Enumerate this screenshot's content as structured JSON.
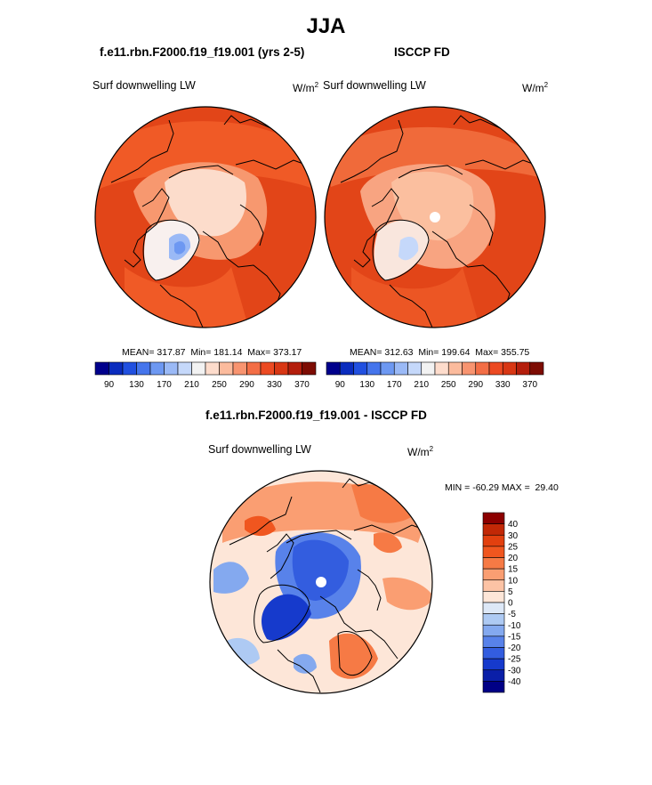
{
  "figure": {
    "season": "JJA",
    "left_case": "f.e11.rbn.F2000.f19_f19.001 (yrs 2-5)",
    "right_case": "ISCCP FD",
    "diff_title": "f.e11.rbn.F2000.f19_f19.001 - ISCCP FD"
  },
  "chart_data": [
    {
      "type": "heatmap",
      "projection": "north-polar-stereographic",
      "title": "f.e11.rbn.F2000.f19_f19.001 (yrs 2-5)",
      "variable": "Surf downwelling LW",
      "units_base": "W/m",
      "units_exp": "2",
      "mean": "317.87",
      "min": "181.14",
      "max": "373.17",
      "stats_line": "MEAN= 317.87  Min= 181.14  Max= 373.17",
      "colorbar_ticks": [
        "90",
        "130",
        "170",
        "210",
        "250",
        "290",
        "330",
        "370"
      ],
      "colors": [
        "#00008c",
        "#0a2cbe",
        "#2150e0",
        "#4575ec",
        "#6d98f2",
        "#9ab9f6",
        "#c5d8fa",
        "#f2f2f2",
        "#fddccc",
        "#fbbb9d",
        "#f89470",
        "#f36e46",
        "#ec4a22",
        "#d83714",
        "#b41e0c",
        "#7d0c03"
      ]
    },
    {
      "type": "heatmap",
      "projection": "north-polar-stereographic",
      "title": "ISCCP FD",
      "variable": "Surf downwelling LW",
      "units_base": "W/m",
      "units_exp": "2",
      "mean": "312.63",
      "min": "199.64",
      "max": "355.75",
      "stats_line": "MEAN= 312.63  Min= 199.64  Max= 355.75",
      "colorbar_ticks": [
        "90",
        "130",
        "170",
        "210",
        "250",
        "290",
        "330",
        "370"
      ],
      "colors": [
        "#00008c",
        "#0a2cbe",
        "#2150e0",
        "#4575ec",
        "#6d98f2",
        "#9ab9f6",
        "#c5d8fa",
        "#f2f2f2",
        "#fddccc",
        "#fbbb9d",
        "#f89470",
        "#f36e46",
        "#ec4a22",
        "#d83714",
        "#b41e0c",
        "#7d0c03"
      ]
    },
    {
      "type": "heatmap",
      "projection": "north-polar-stereographic",
      "title": "f.e11.rbn.F2000.f19_f19.001 - ISCCP FD",
      "variable": "Surf downwelling LW",
      "units_base": "W/m",
      "units_exp": "2",
      "stats_line": "MIN = -60.29 MAX =  29.40",
      "min": "-60.29",
      "max": "29.40",
      "colorbar_levels": [
        "40",
        "30",
        "25",
        "20",
        "15",
        "10",
        "5",
        "0",
        "-5",
        "-10",
        "-15",
        "-20",
        "-25",
        "-30",
        "-40"
      ],
      "colors": [
        "#8c0000",
        "#c22806",
        "#e2400f",
        "#f0561f",
        "#f67a45",
        "#fa9e72",
        "#fcc3a5",
        "#fde6d8",
        "#dde8f7",
        "#aecaf3",
        "#84a9ef",
        "#5882ea",
        "#335ddf",
        "#163acc",
        "#0a1fa8",
        "#000086"
      ]
    }
  ]
}
